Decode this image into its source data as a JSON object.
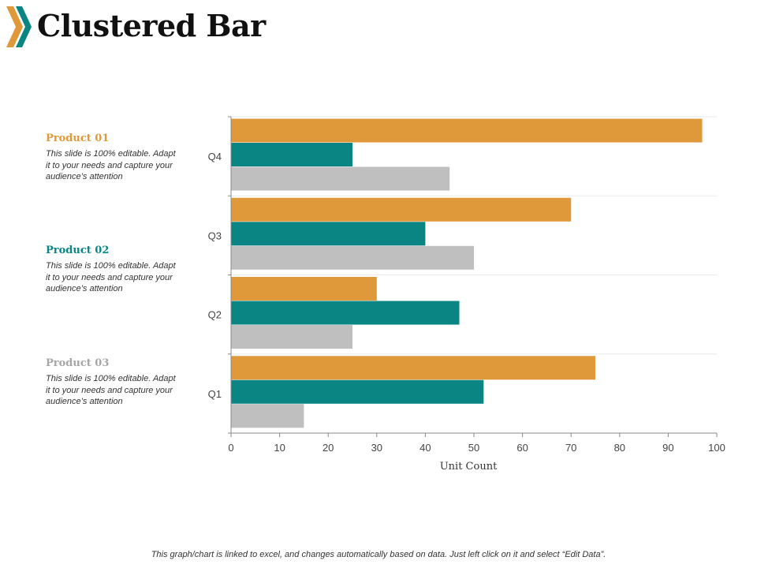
{
  "header": {
    "title": "Clustered Bar"
  },
  "colors": {
    "product01": "#E0993A",
    "product02": "#0A8583",
    "product03": "#BFBFBF"
  },
  "legend": [
    {
      "name": "Product 01",
      "desc": "This slide is 100% editable. Adapt it to your needs and capture your audience’s attention"
    },
    {
      "name": "Product 02",
      "desc": "This slide is 100% editable. Adapt it to your needs and capture your audience’s attention"
    },
    {
      "name": "Product 03",
      "desc": "This slide is 100% editable. Adapt it to your needs and capture your audience’s attention"
    }
  ],
  "chart_data": {
    "type": "bar",
    "orientation": "horizontal",
    "categories": [
      "Q1",
      "Q2",
      "Q3",
      "Q4"
    ],
    "series": [
      {
        "name": "Product 01",
        "values": [
          75,
          30,
          70,
          97
        ]
      },
      {
        "name": "Product 02",
        "values": [
          52,
          47,
          40,
          25
        ]
      },
      {
        "name": "Product 03",
        "values": [
          15,
          25,
          50,
          45
        ]
      }
    ],
    "xlabel": "Unit Count",
    "ylabel": "",
    "xlim": [
      0,
      100
    ],
    "xticks": [
      0,
      10,
      20,
      30,
      40,
      50,
      60,
      70,
      80,
      90,
      100
    ],
    "grid": true
  },
  "footer": {
    "text": "This graph/chart is linked to excel, and changes automatically based on data. Just left click on it and select “Edit Data”."
  }
}
